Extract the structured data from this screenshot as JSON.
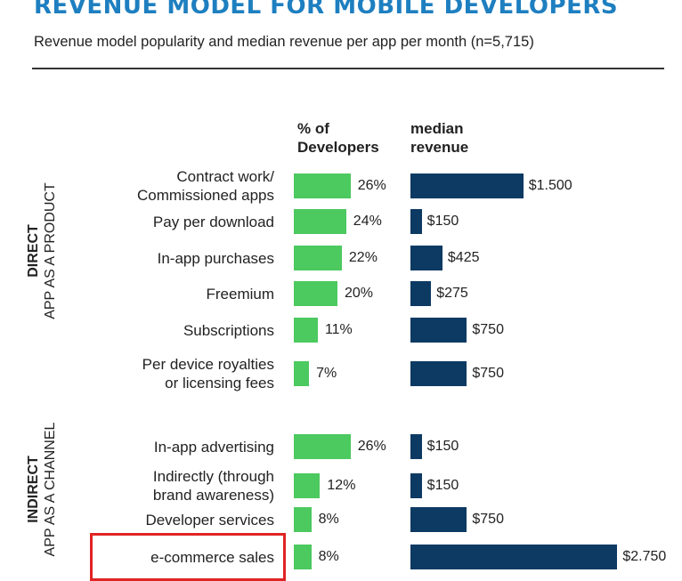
{
  "title": "REVENUE MODEL FOR MOBILE DEVELOPERS",
  "subtitle": "Revenue model popularity and median revenue per app per month (n=5,715)",
  "columns": {
    "pct_header": [
      "% of",
      "Developers"
    ],
    "rev_header": [
      "median",
      "revenue"
    ]
  },
  "groups": [
    {
      "strong": "DIRECT",
      "label": "APP AS A PRODUCT"
    },
    {
      "strong": "INDIRECT",
      "label": "APP AS A CHANNEL"
    }
  ],
  "highlighted_category": "e-commerce sales",
  "colors": {
    "pct": "#4cc95f",
    "rev": "#0d3a63",
    "highlight": "#e02424",
    "title": "#1e7fc0"
  },
  "chart_data": {
    "type": "bar",
    "categories": [
      "Contract work/\nCommissioned apps",
      "Pay per download",
      "In-app purchases",
      "Freemium",
      "Subscriptions",
      "Per device royalties\nor licensing fees",
      "In-app advertising",
      "Indirectly (through\nbrand awareness)",
      "Developer services",
      "e-commerce sales"
    ],
    "group_of_category": [
      0,
      0,
      0,
      0,
      0,
      0,
      1,
      1,
      1,
      1
    ],
    "series": [
      {
        "name": "% of Developers",
        "values": [
          26,
          24,
          22,
          20,
          11,
          7,
          26,
          12,
          8,
          8
        ],
        "labels": [
          "26%",
          "24%",
          "22%",
          "20%",
          "11%",
          "7%",
          "26%",
          "12%",
          "8%",
          "8%"
        ]
      },
      {
        "name": "median revenue",
        "values": [
          1500,
          150,
          425,
          275,
          750,
          750,
          150,
          150,
          750,
          2750
        ],
        "labels": [
          "$1.500",
          "$150",
          "$425",
          "$275",
          "$750",
          "$750",
          "$150",
          "$150",
          "$750",
          "$2.750"
        ]
      }
    ]
  }
}
